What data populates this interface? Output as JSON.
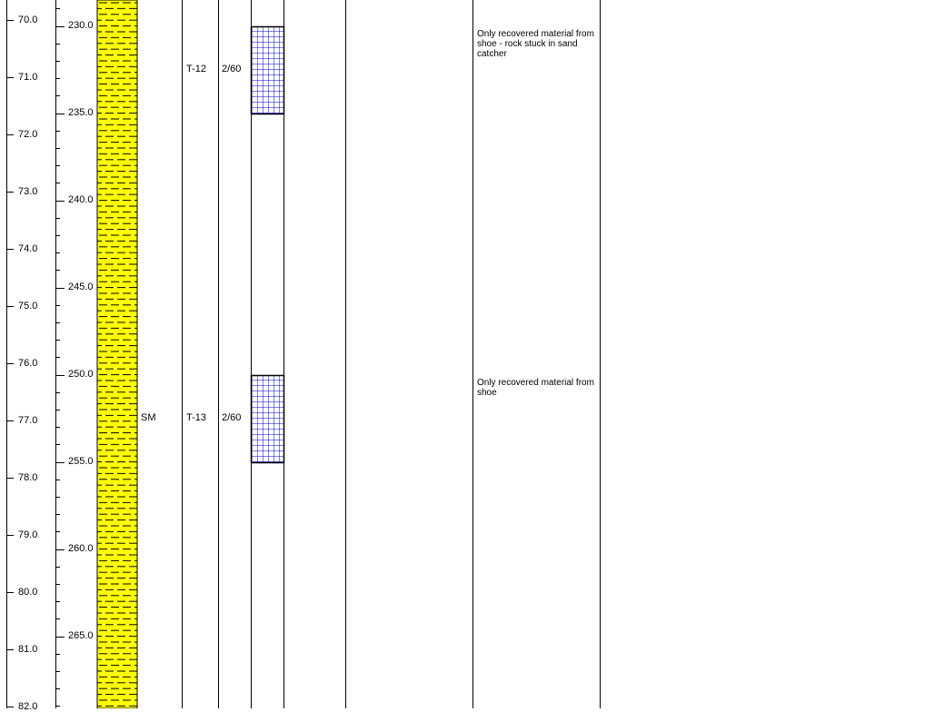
{
  "log": {
    "depth_m": {
      "min": 69.6,
      "max": 82.0,
      "major_step": 1.0,
      "labels": [
        "70.0",
        "71.0",
        "72.0",
        "73.0",
        "74.0",
        "75.0",
        "76.0",
        "77.0",
        "78.0",
        "79.0",
        "80.0",
        "81.0",
        "82.0"
      ]
    },
    "depth_ft": {
      "major_step": 5,
      "minor_step": 1,
      "labels": [
        "230.0",
        "235.0",
        "240.0",
        "245.0",
        "250.0",
        "255.0",
        "260.0",
        "265.0"
      ]
    },
    "soil": {
      "symbol": "SM",
      "fill_color": "#ffff00",
      "pattern": "dashed-silty-sand",
      "label_depth_ft": 252.5
    },
    "samples": [
      {
        "id": "T-12",
        "blows": "2/60",
        "top_ft": 230.0,
        "bottom_ft": 235.0,
        "remark": "Only recovered material from shoe - rock stuck in sand catcher"
      },
      {
        "id": "T-13",
        "blows": "2/60",
        "top_ft": 250.0,
        "bottom_ft": 255.0,
        "remark": "Only recovered material from shoe"
      }
    ],
    "sample_grid_color": "#0000cc"
  }
}
